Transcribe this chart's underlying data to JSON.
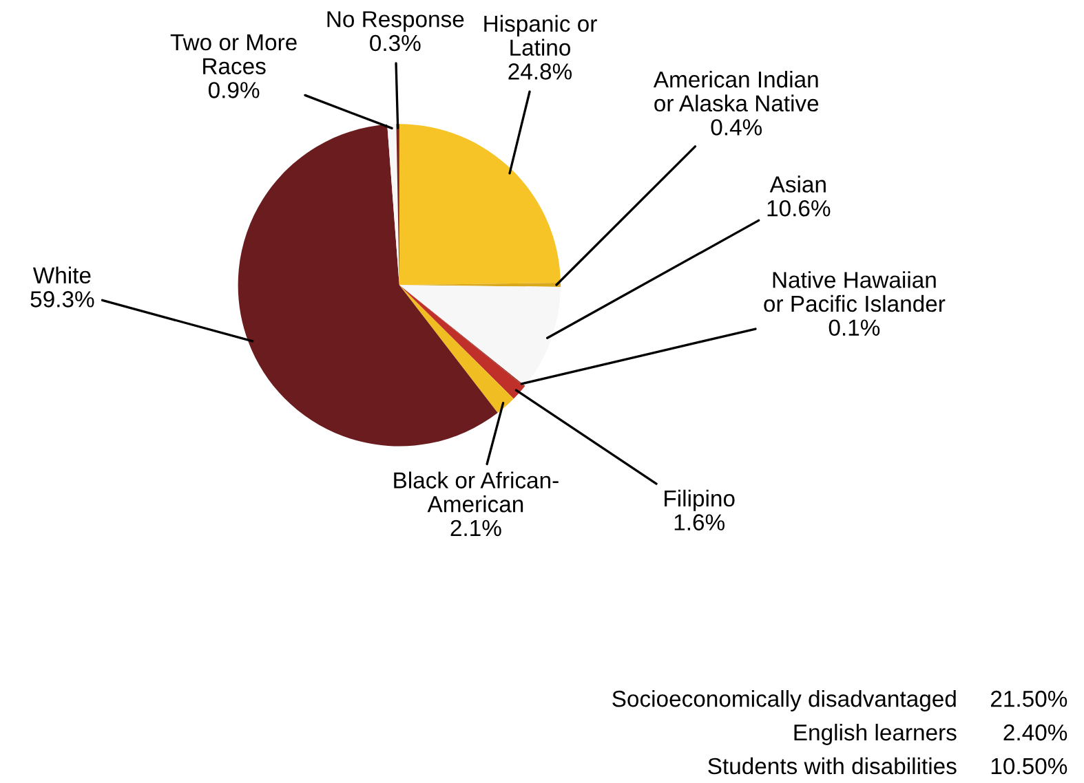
{
  "chart_data": {
    "type": "pie",
    "categories": [
      "Hispanic or\nLatino",
      "American Indian\nor Alaska Native",
      "Asian",
      "Native Hawaiian\nor Pacific Islander",
      "Filipino",
      "Black or African-\nAmerican",
      "White",
      "Two or More\nRaces",
      "No Response"
    ],
    "values": [
      24.8,
      0.4,
      10.6,
      0.1,
      1.6,
      2.1,
      59.3,
      0.9,
      0.3
    ],
    "value_labels": [
      "24.8%",
      "0.4%",
      "10.6%",
      "0.1%",
      "1.6%",
      "2.1%",
      "59.3%",
      "0.9%",
      "0.3%"
    ],
    "colors": [
      "#f6c426",
      "#d9a81c",
      "#f7f7f7",
      "#8a2a20",
      "#c0302a",
      "#f0bd22",
      "#6a1c1e",
      "#f7f7f7",
      "#7a2424"
    ],
    "legend": false,
    "annotations": [
      "Socioeconomically disadvantaged\t21.50%",
      "English learners\t2.40%",
      "Students with disabilities\t10.50%"
    ]
  }
}
